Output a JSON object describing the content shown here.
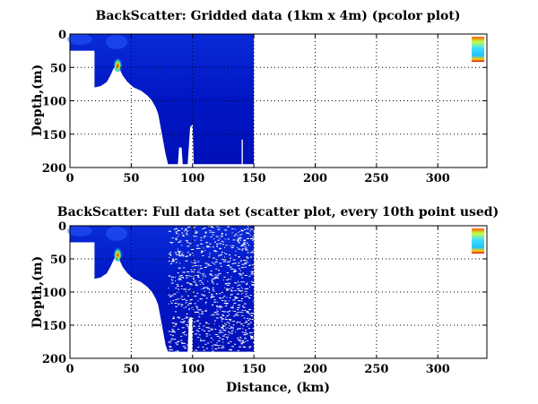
{
  "chart_data": [
    {
      "type": "heatmap",
      "title": "BackScatter: Gridded data (1km x 4m) (pcolor plot)",
      "xlabel": "",
      "ylabel": "Depth,(m)",
      "xlim": [
        0,
        340
      ],
      "ylim": [
        0,
        200
      ],
      "y_reversed": true,
      "grid": true,
      "xticks": [
        "0",
        "50",
        "100",
        "150",
        "200",
        "250",
        "300"
      ],
      "yticks": [
        "0",
        "50",
        "100",
        "150",
        "200"
      ],
      "data_outline_km_m": [
        [
          0,
          0
        ],
        [
          150,
          0
        ],
        [
          150,
          195
        ],
        [
          141,
          195
        ],
        [
          141,
          158
        ],
        [
          140,
          158
        ],
        [
          140,
          195
        ],
        [
          101,
          195
        ],
        [
          100,
          135
        ],
        [
          98,
          140
        ],
        [
          96,
          195
        ],
        [
          92,
          195
        ],
        [
          91,
          170
        ],
        [
          89,
          170
        ],
        [
          88,
          195
        ],
        [
          80,
          195
        ],
        [
          78,
          180
        ],
        [
          75,
          150
        ],
        [
          72,
          120
        ],
        [
          70,
          110
        ],
        [
          67,
          100
        ],
        [
          63,
          92
        ],
        [
          58,
          85
        ],
        [
          52,
          80
        ],
        [
          47,
          72
        ],
        [
          43,
          62
        ],
        [
          40,
          50
        ],
        [
          38,
          45
        ],
        [
          36,
          50
        ],
        [
          33,
          62
        ],
        [
          30,
          72
        ],
        [
          25,
          78
        ],
        [
          20,
          80
        ],
        [
          20,
          25
        ],
        [
          0,
          25
        ]
      ],
      "background_level": "low (blue)",
      "hotspots": [
        {
          "x": 39,
          "y": 45,
          "level": "high (red)"
        },
        {
          "x": 332,
          "y": 20,
          "level": "medium (cyan/yellow)"
        }
      ],
      "colors": {
        "low": "#0000b4",
        "mid": "#1e50ff",
        "high": "#ff2000"
      }
    },
    {
      "type": "scatter",
      "title": "BackScatter: Full data set (scatter plot, every 10th point used)",
      "xlabel": "Distance, (km)",
      "ylabel": "Depth,(m)",
      "xlim": [
        0,
        340
      ],
      "ylim": [
        0,
        200
      ],
      "y_reversed": true,
      "grid": true,
      "xticks": [
        "0",
        "50",
        "100",
        "150",
        "200",
        "250",
        "300"
      ],
      "yticks": [
        "0",
        "50",
        "100",
        "150",
        "200"
      ],
      "data_outline_km_m": [
        [
          0,
          0
        ],
        [
          150,
          0
        ],
        [
          150,
          190
        ],
        [
          100,
          190
        ],
        [
          100,
          140
        ],
        [
          97,
          140
        ],
        [
          96,
          190
        ],
        [
          80,
          190
        ],
        [
          78,
          180
        ],
        [
          75,
          150
        ],
        [
          72,
          120
        ],
        [
          70,
          110
        ],
        [
          67,
          100
        ],
        [
          63,
          92
        ],
        [
          58,
          85
        ],
        [
          52,
          80
        ],
        [
          47,
          72
        ],
        [
          43,
          62
        ],
        [
          40,
          50
        ],
        [
          38,
          45
        ],
        [
          36,
          50
        ],
        [
          33,
          62
        ],
        [
          30,
          72
        ],
        [
          25,
          78
        ],
        [
          20,
          80
        ],
        [
          20,
          25
        ],
        [
          0,
          25
        ]
      ],
      "sparse_region_km": [
        80,
        150
      ],
      "hotspots": [
        {
          "x": 39,
          "y": 42,
          "level": "high (yellow)"
        },
        {
          "x": 332,
          "y": 20,
          "level": "medium (cyan/yellow)"
        }
      ]
    }
  ]
}
